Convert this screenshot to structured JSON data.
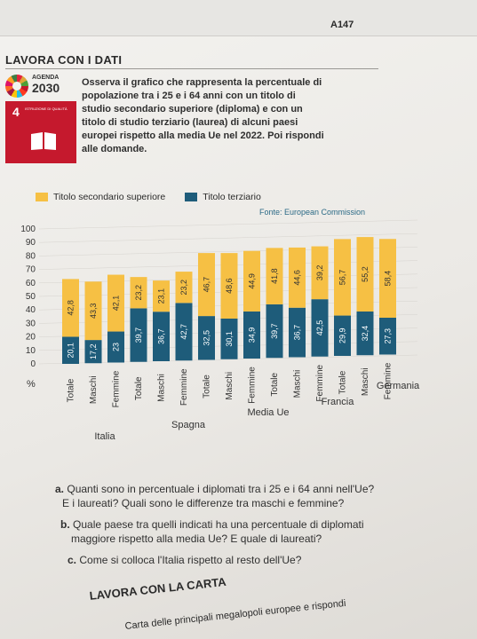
{
  "header": {
    "code": "A147"
  },
  "section": {
    "title": "LAVORA CON I DATI"
  },
  "agenda": {
    "label": "AGENDA",
    "year": "2030"
  },
  "sdg": {
    "number": "4",
    "text": "ISTRUZIONE DI QUALITÀ",
    "icon": "book-icon",
    "color": "#c5192d"
  },
  "intro_lines": [
    "Osserva il grafico che rappresenta la percentuale di",
    "popolazione tra i 25 e i 64 anni con un titolo di",
    "studio secondario superiore (diploma) e con un",
    "titolo di studio terziario (laurea) di alcuni paesi",
    "europei rispetto alla media Ue nel 2022. Poi rispondi",
    "alle domande."
  ],
  "chart_data": {
    "type": "bar",
    "stacked": true,
    "source": "Fonte: European Commission",
    "ylabel": "%",
    "ylim": [
      0,
      100
    ],
    "yticks": [
      0,
      10,
      20,
      30,
      40,
      50,
      60,
      70,
      80,
      90,
      100
    ],
    "categories": [
      "Totale",
      "Maschi",
      "Femmine",
      "Totale",
      "Maschi",
      "Femmine",
      "Totale",
      "Maschi",
      "Femmine",
      "Totale",
      "Maschi",
      "Femmine",
      "Totale",
      "Maschi",
      "Femmine"
    ],
    "groups": [
      "Italia",
      "Spagna",
      "Media Ue",
      "Francia",
      "Germania"
    ],
    "series": [
      {
        "name": "Titolo terziario",
        "color": "#1e5c7a",
        "values": [
          20.1,
          17.2,
          23.0,
          39.7,
          36.7,
          42.7,
          32.5,
          30.1,
          34.9,
          39.7,
          36.7,
          42.5,
          29.9,
          32.4,
          27.3
        ]
      },
      {
        "name": "Titolo secondario superiore",
        "color": "#f6c044",
        "values": [
          42.8,
          43.3,
          42.1,
          23.2,
          23.1,
          23.2,
          46.7,
          48.6,
          44.9,
          41.8,
          44.6,
          39.2,
          56.7,
          55.2,
          58.4
        ]
      }
    ]
  },
  "questions": [
    {
      "letter": "a.",
      "lines": [
        "Quanti sono in percentuale i diplomati tra i 25 e i 64 anni nell'Ue?",
        "E i laureati? Quali sono le differenze tra maschi e femmine?"
      ]
    },
    {
      "letter": "b.",
      "lines": [
        "Quale paese tra quelli indicati ha una percentuale di diplomati",
        "maggiore rispetto alla media Ue? E quale di laureati?"
      ]
    },
    {
      "letter": "c.",
      "lines": [
        "Come si colloca l'Italia rispetto al resto dell'Ue?"
      ]
    }
  ],
  "card": {
    "title": "LAVORA CON LA CARTA",
    "text": "Carta delle principali megalopoli europee e rispondi"
  }
}
